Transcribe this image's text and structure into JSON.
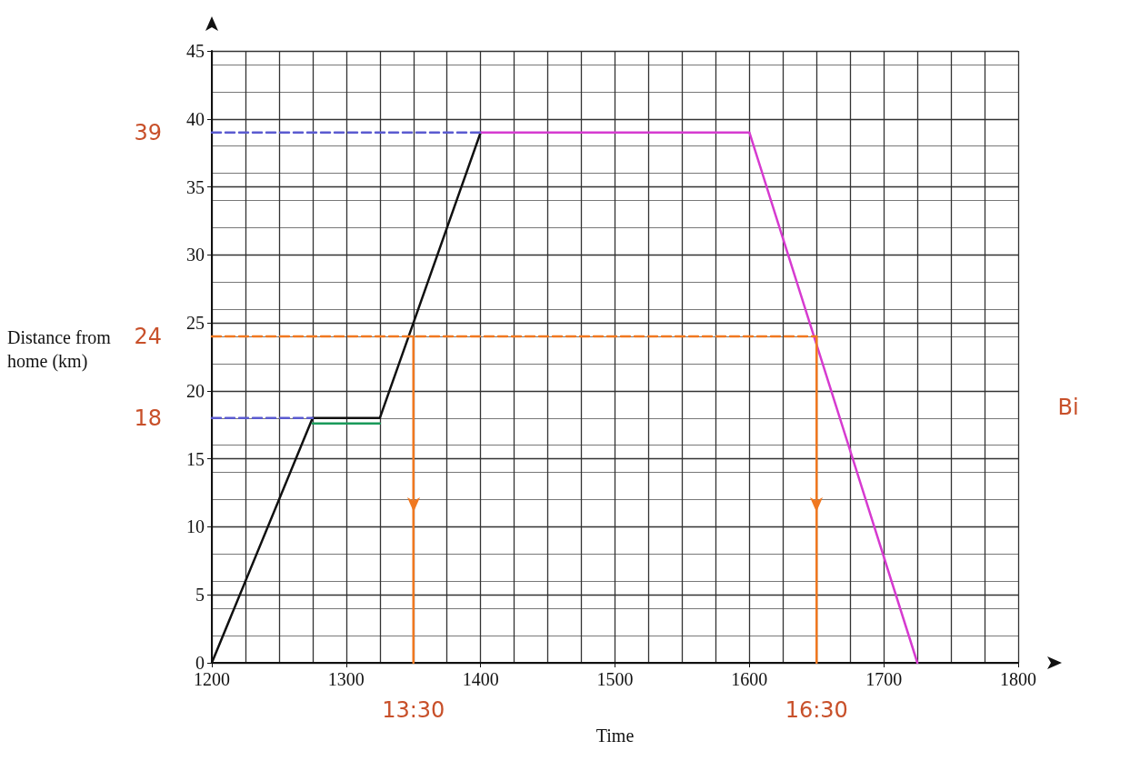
{
  "chart_data": {
    "type": "line",
    "xlabel": "Time",
    "ylabel": "Distance from home (km)",
    "xlim": [
      1200,
      1800
    ],
    "xticks": [
      1200,
      1300,
      1400,
      1500,
      1600,
      1700,
      1800
    ],
    "ylim": [
      0,
      45
    ],
    "yticks": [
      0,
      5,
      10,
      15,
      20,
      25,
      30,
      35,
      40,
      45
    ],
    "grid": true,
    "marker": "none",
    "series": [
      {
        "x": [
          1200,
          1275,
          1325,
          1400
        ],
        "values": [
          0,
          18,
          18,
          39
        ],
        "color": "#111111"
      },
      {
        "x": [
          1400,
          1600,
          1725
        ],
        "values": [
          39,
          39,
          0
        ],
        "color": "#d63bd0"
      },
      {
        "x": [
          1275,
          1325
        ],
        "values": [
          17.6,
          17.6
        ],
        "color": "#1a9a5a"
      },
      {
        "x": [
          1200,
          1400
        ],
        "values": [
          39,
          39
        ],
        "color": "#5a5ad0",
        "line_style": "dashed"
      },
      {
        "x": [
          1200,
          1275
        ],
        "values": [
          18,
          18
        ],
        "color": "#5a5ad0",
        "line_style": "dashed"
      },
      {
        "x": [
          1200,
          1650
        ],
        "values": [
          24,
          24
        ],
        "color": "#f07820",
        "line_style": "dashed"
      },
      {
        "x": [
          1350,
          1350
        ],
        "values": [
          24,
          0
        ],
        "color": "#f07820"
      },
      {
        "x": [
          1650,
          1650
        ],
        "values": [
          24,
          0
        ],
        "color": "#f07820"
      }
    ],
    "annotations": [
      {
        "text": "39",
        "x": 1200,
        "y": 39
      },
      {
        "text": "18",
        "x": 1200,
        "y": 18
      },
      {
        "text": "24",
        "x": 1200,
        "y": 24
      },
      {
        "text": "13:30",
        "x": 1350,
        "y": 0
      },
      {
        "text": "16:30",
        "x": 1650,
        "y": 0
      },
      "Bi"
    ]
  }
}
